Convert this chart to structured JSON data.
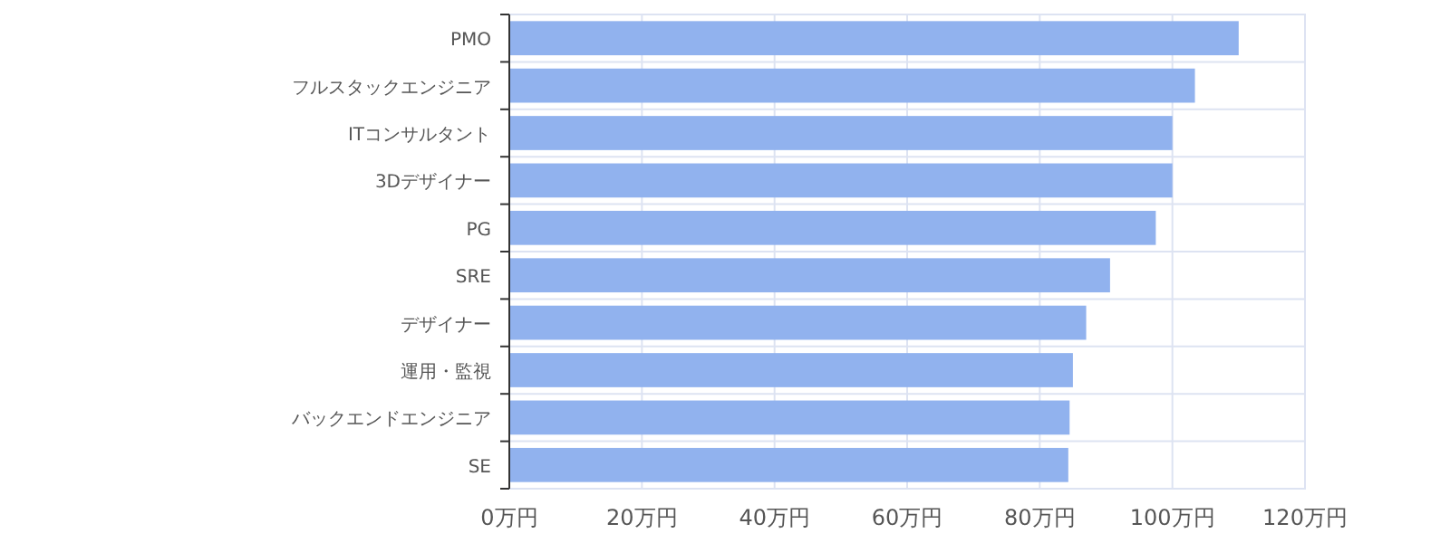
{
  "chart_data": {
    "type": "bar",
    "orientation": "horizontal",
    "categories": [
      "PMO",
      "フルスタックエンジニア",
      "ITコンサルタント",
      "3Dデザイナー",
      "PG",
      "SRE",
      "デザイナー",
      "運用・監視",
      "バックエンドエンジニア",
      "SE"
    ],
    "values": [
      110,
      103.4,
      100,
      100,
      97.5,
      90.6,
      87,
      85,
      84.5,
      84.3
    ],
    "color": "#8fb0ee",
    "xlim": [
      0,
      120
    ],
    "xticks": [
      {
        "value": 0,
        "label": "0万円"
      },
      {
        "value": 20,
        "label": "20万円"
      },
      {
        "value": 40,
        "label": "40万円"
      },
      {
        "value": 60,
        "label": "60万円"
      },
      {
        "value": 80,
        "label": "80万円"
      },
      {
        "value": 100,
        "label": "100万円"
      },
      {
        "value": 120,
        "label": "120万円"
      }
    ],
    "grid": true
  }
}
